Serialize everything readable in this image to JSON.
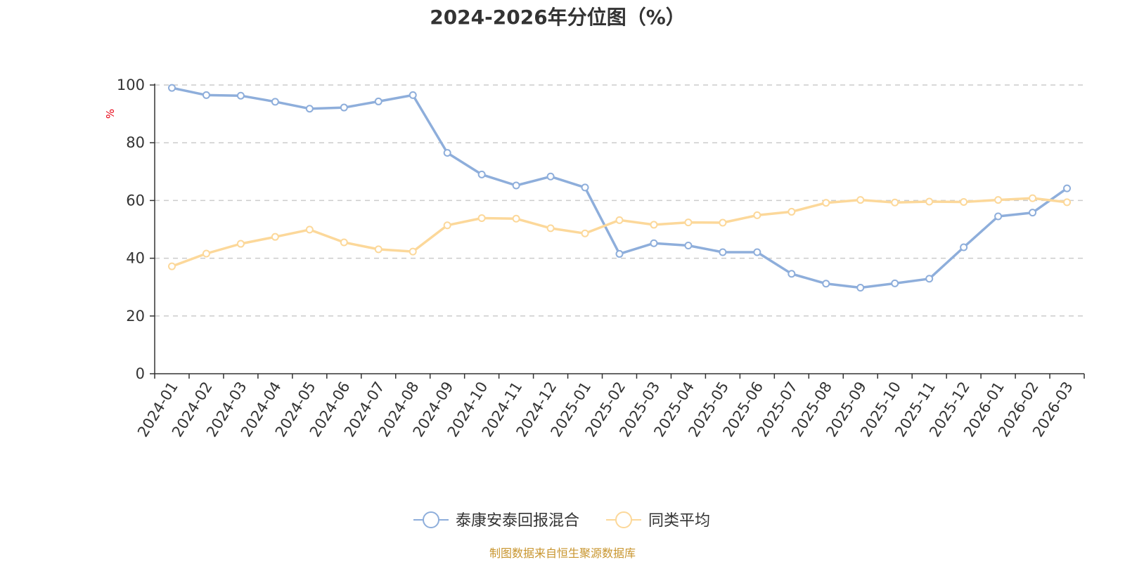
{
  "chart_data": {
    "type": "line",
    "title": "2024-2026年分位图（%）",
    "ylabel": "%",
    "ylim": [
      0,
      100
    ],
    "yticks": [
      0,
      20,
      40,
      60,
      80,
      100
    ],
    "grid": true,
    "legend_position": "bottom",
    "categories": [
      "2024-01",
      "2024-02",
      "2024-03",
      "2024-04",
      "2024-05",
      "2024-06",
      "2024-07",
      "2024-08",
      "2024-09",
      "2024-10",
      "2024-11",
      "2024-12",
      "2025-01",
      "2025-02",
      "2025-03",
      "2025-04",
      "2025-05",
      "2025-06",
      "2025-07",
      "2025-08",
      "2025-09",
      "2025-10",
      "2025-11",
      "2025-12",
      "2026-01",
      "2026-02",
      "2026-03"
    ],
    "series": [
      {
        "name": "泰康安泰回报混合",
        "color": "#8eaedb",
        "values": [
          99,
          96.5,
          96.3,
          94.2,
          91.8,
          92.2,
          94.3,
          96.5,
          76.5,
          69,
          65.2,
          68.3,
          64.5,
          41.5,
          45.2,
          44.4,
          42.1,
          42.1,
          34.6,
          31.2,
          29.8,
          31.3,
          32.9,
          43.8,
          54.5,
          55.8,
          64.2
        ]
      },
      {
        "name": "同类平均",
        "color": "#fcd89a",
        "values": [
          37.2,
          41.6,
          45,
          47.4,
          49.9,
          45.5,
          43.1,
          42.3,
          51.4,
          53.9,
          53.7,
          50.4,
          48.6,
          53.2,
          51.6,
          52.4,
          52.3,
          54.9,
          56.1,
          59.2,
          60.2,
          59.3,
          59.6,
          59.5,
          60.2,
          60.8,
          59.4
        ]
      }
    ]
  },
  "footer": {
    "source": "制图数据来自恒生聚源数据库"
  }
}
